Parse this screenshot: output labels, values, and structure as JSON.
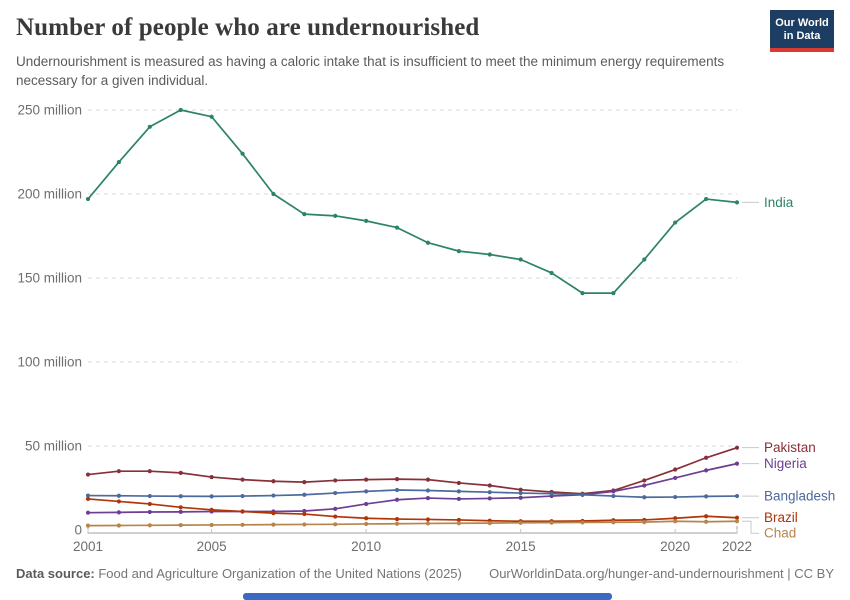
{
  "header": {
    "title": "Number of people who are undernourished",
    "subtitle": "Undernourishment is measured as having a caloric intake that is insufficient to meet the minimum energy requirements necessary for a given individual.",
    "logo": {
      "line1": "Our World",
      "line2": "in Data",
      "bg": "#1d3d63",
      "accent": "#d93b32"
    }
  },
  "footer": {
    "source_label": "Data source:",
    "source_text": " Food and Agriculture Organization of the United Nations (2025)",
    "link_text": "OurWorldinData.org/hunger-and-undernourishment | CC BY"
  },
  "timeline": {
    "color": "#3a6ac2"
  },
  "chart_data": {
    "type": "line",
    "title": "Number of people who are undernourished",
    "unit": "people",
    "grid": "horizontal-dashed",
    "legend_position": "right-of-line-ends",
    "ylim": [
      0,
      250
    ],
    "y_ticks": [
      {
        "value": 0,
        "label": "0"
      },
      {
        "value": 50,
        "label": "50 million"
      },
      {
        "value": 100,
        "label": "100 million"
      },
      {
        "value": 150,
        "label": "150 million"
      },
      {
        "value": 200,
        "label": "200 million"
      },
      {
        "value": 250,
        "label": "250 million"
      }
    ],
    "x": [
      2001,
      2002,
      2003,
      2004,
      2005,
      2006,
      2007,
      2008,
      2009,
      2010,
      2011,
      2012,
      2013,
      2014,
      2015,
      2016,
      2017,
      2018,
      2019,
      2020,
      2021,
      2022
    ],
    "x_tick_labels": [
      "2001",
      "2005",
      "2010",
      "2015",
      "2020",
      "2022"
    ],
    "x_tick_years": [
      2001,
      2005,
      2010,
      2015,
      2020,
      2022
    ],
    "series": [
      {
        "name": "India",
        "color": "#2C8465",
        "values": [
          197,
          219,
          240,
          250,
          246,
          224,
          200,
          188,
          187,
          184,
          180,
          171,
          166,
          164,
          161,
          153,
          141,
          141,
          161,
          183,
          197,
          195
        ]
      },
      {
        "name": "Pakistan",
        "color": "#883039",
        "values": [
          33,
          35,
          35,
          34,
          31.5,
          30,
          29,
          28.5,
          29.5,
          30,
          30.3,
          30,
          28,
          26.5,
          24,
          22.6,
          21.6,
          23.5,
          29.5,
          36,
          43,
          49
        ]
      },
      {
        "name": "Nigeria",
        "color": "#6D3E91",
        "values": [
          10.3,
          10.5,
          10.7,
          10.8,
          11,
          11,
          11,
          11.3,
          12.6,
          15.5,
          18,
          19,
          18.5,
          18.8,
          19.2,
          20.2,
          21,
          23,
          26.5,
          31,
          35.5,
          39.5
        ]
      },
      {
        "name": "Bangladesh",
        "color": "#4C6A9C",
        "values": [
          20.5,
          20.4,
          20.2,
          20.1,
          20,
          20.2,
          20.5,
          21,
          22,
          23,
          23.8,
          23.5,
          23,
          22.5,
          22,
          21.6,
          21,
          20.2,
          19.5,
          19.6,
          20,
          20.2
        ]
      },
      {
        "name": "Brazil",
        "color": "#B13507",
        "values": [
          18.5,
          17,
          15.5,
          13.5,
          12,
          11,
          10,
          9.5,
          8,
          7,
          6.5,
          6.3,
          6,
          5.5,
          5.2,
          5.2,
          5.4,
          5.8,
          6,
          7,
          8.2,
          7.3
        ]
      },
      {
        "name": "Chad",
        "color": "#B6854D",
        "values": [
          2.6,
          2.7,
          2.8,
          2.9,
          3,
          3.1,
          3.2,
          3.3,
          3.4,
          3.6,
          3.7,
          3.9,
          4,
          4.1,
          4.3,
          4.4,
          4.5,
          4.6,
          4.7,
          5.2,
          4.9,
          5.2
        ]
      }
    ]
  }
}
